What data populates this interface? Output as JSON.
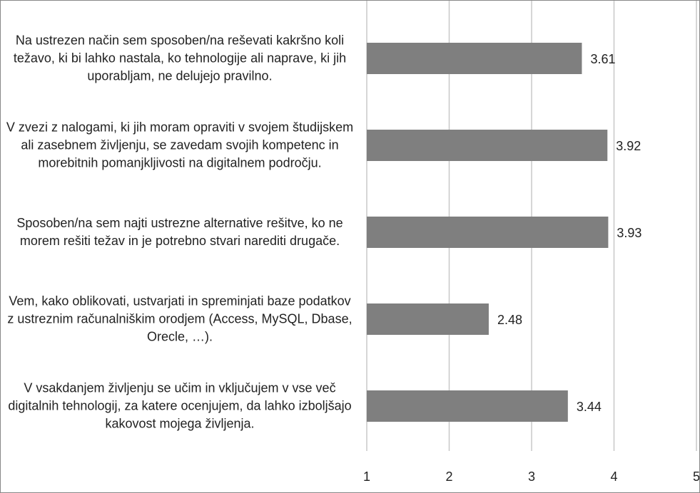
{
  "chart_data": {
    "type": "bar",
    "orientation": "horizontal",
    "categories": [
      "Na ustrezen način sem sposoben/na reševati kakršno koli težavo, ki bi lahko nastala, ko tehnologije ali naprave, ki jih uporabljam, ne delujejo pravilno.",
      "V zvezi z nalogami, ki jih moram opraviti v svojem študijskem ali zasebnem življenju, se zavedam svojih kompetenc in morebitnih pomanjkljivosti na digitalnem področju.",
      "Sposoben/na sem najti ustrezne alternative rešitve, ko ne morem rešiti težav in je potrebno stvari narediti drugače.",
      "Vem, kako oblikovati, ustvarjati in spreminjati baze podatkov z ustreznim računalniškim orodjem (Access, MySQL, Dbase, Orecle, …).",
      "V vsakdanjem življenju se učim in vključujem v vse več digitalnih tehnologij, za katere ocenjujem, da lahko izboljšajo kakovost mojega življenja."
    ],
    "values": [
      3.61,
      3.92,
      3.93,
      2.48,
      3.44
    ],
    "color": "#7f7f7f",
    "xlim": [
      1,
      5
    ],
    "xticks": [
      1,
      2,
      3,
      4,
      5
    ],
    "grid": true
  }
}
